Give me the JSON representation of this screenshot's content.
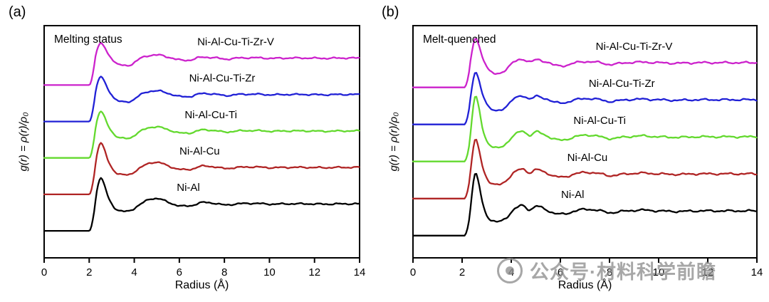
{
  "figure": {
    "background": "#ffffff"
  },
  "watermark": {
    "text": "公众号·材料科学前瞻",
    "color": "#919191"
  },
  "chart_data": [
    {
      "type": "line",
      "panel_label": "(a)",
      "title": "Melting status",
      "xlabel": "Radius (Å)",
      "ylabel": "g(r) = ρ(r)/ρ₀",
      "xlim": [
        0,
        14
      ],
      "ylim": [
        -1.0,
        7.6
      ],
      "x_ticks": [
        0,
        2,
        4,
        6,
        8,
        10,
        12,
        14
      ],
      "grid": false,
      "legend_position": "curve-labels-inline",
      "noise_amp": 0.035,
      "base_points": [
        [
          0,
          0
        ],
        [
          1.0,
          0
        ],
        [
          1.9,
          0
        ],
        [
          2.05,
          0.05
        ],
        [
          2.2,
          0.6
        ],
        [
          2.35,
          1.55
        ],
        [
          2.5,
          2.0
        ],
        [
          2.65,
          1.8
        ],
        [
          2.85,
          1.25
        ],
        [
          3.1,
          0.88
        ],
        [
          3.4,
          0.74
        ],
        [
          3.8,
          0.74
        ],
        [
          4.2,
          0.95
        ],
        [
          4.7,
          1.18
        ],
        [
          5.1,
          1.2
        ],
        [
          5.5,
          1.06
        ],
        [
          6.0,
          0.93
        ],
        [
          6.5,
          0.93
        ],
        [
          7.0,
          1.05
        ],
        [
          7.5,
          1.03
        ],
        [
          8.0,
          0.96
        ],
        [
          8.6,
          1.0
        ],
        [
          9.3,
          1.02
        ],
        [
          10.0,
          0.99
        ],
        [
          10.8,
          1.0
        ],
        [
          11.6,
          1.0
        ],
        [
          12.5,
          0.99
        ],
        [
          13.2,
          1.0
        ],
        [
          14,
          1.0
        ]
      ],
      "series": [
        {
          "name": "Ni-Al",
          "color": "#000000",
          "offset": 0,
          "peak_scale": 0.95,
          "label_x": 6.4,
          "seed": 1
        },
        {
          "name": "Ni-Al-Cu",
          "color": "#b02525",
          "offset": 1.35,
          "peak_scale": 0.9,
          "label_x": 6.9,
          "seed": 2
        },
        {
          "name": "Ni-Al-Cu-Ti",
          "color": "#63d92e",
          "offset": 2.7,
          "peak_scale": 0.72,
          "label_x": 7.4,
          "seed": 3
        },
        {
          "name": "Ni-Al-Cu-Ti-Zr",
          "color": "#2121d6",
          "offset": 4.05,
          "peak_scale": 0.66,
          "label_x": 7.9,
          "seed": 4
        },
        {
          "name": "Ni-Al-Cu-Ti-Zr-V",
          "color": "#cc22cc",
          "offset": 5.4,
          "peak_scale": 0.55,
          "label_x": 8.5,
          "seed": 5
        }
      ]
    },
    {
      "type": "line",
      "panel_label": "(b)",
      "title": "Melt-quenched",
      "xlabel": "Radius (Å)",
      "ylabel": "g(r) = ρ(r)/ρ₀",
      "xlim": [
        0,
        14
      ],
      "ylim": [
        -0.9,
        8.5
      ],
      "x_ticks": [
        0,
        2,
        4,
        6,
        8,
        10,
        12,
        14
      ],
      "grid": false,
      "legend_position": "curve-labels-inline",
      "noise_amp": 0.05,
      "base_points": [
        [
          0,
          0
        ],
        [
          1.0,
          0
        ],
        [
          2.0,
          0
        ],
        [
          2.15,
          0.07
        ],
        [
          2.3,
          0.75
        ],
        [
          2.45,
          2.3
        ],
        [
          2.55,
          2.8
        ],
        [
          2.68,
          2.3
        ],
        [
          2.85,
          1.3
        ],
        [
          3.05,
          0.75
        ],
        [
          3.35,
          0.55
        ],
        [
          3.75,
          0.7
        ],
        [
          4.15,
          1.08
        ],
        [
          4.45,
          1.27
        ],
        [
          4.75,
          1.06
        ],
        [
          5.05,
          1.22
        ],
        [
          5.35,
          1.1
        ],
        [
          5.75,
          0.9
        ],
        [
          6.15,
          0.88
        ],
        [
          6.55,
          0.98
        ],
        [
          7.0,
          1.08
        ],
        [
          7.5,
          1.03
        ],
        [
          8.0,
          0.93
        ],
        [
          8.6,
          0.99
        ],
        [
          9.3,
          1.04
        ],
        [
          10.0,
          1.0
        ],
        [
          10.8,
          0.98
        ],
        [
          11.6,
          1.0
        ],
        [
          12.5,
          1.0
        ],
        [
          13.2,
          1.0
        ],
        [
          14,
          1.0
        ]
      ],
      "series": [
        {
          "name": "Ni-Al",
          "color": "#000000",
          "offset": 0,
          "peak_scale": 0.85,
          "label_x": 6.5,
          "seed": 6
        },
        {
          "name": "Ni-Al-Cu",
          "color": "#b02525",
          "offset": 1.5,
          "peak_scale": 0.78,
          "label_x": 7.1,
          "seed": 7
        },
        {
          "name": "Ni-Al-Cu-Ti",
          "color": "#63d92e",
          "offset": 3.0,
          "peak_scale": 0.92,
          "label_x": 7.6,
          "seed": 8
        },
        {
          "name": "Ni-Al-Cu-Ti-Zr",
          "color": "#2121d6",
          "offset": 4.5,
          "peak_scale": 0.62,
          "label_x": 8.5,
          "seed": 9
        },
        {
          "name": "Ni-Al-Cu-Ti-Zr-V",
          "color": "#cc22cc",
          "offset": 6.0,
          "peak_scale": 0.55,
          "label_x": 9.0,
          "seed": 10
        }
      ]
    }
  ]
}
